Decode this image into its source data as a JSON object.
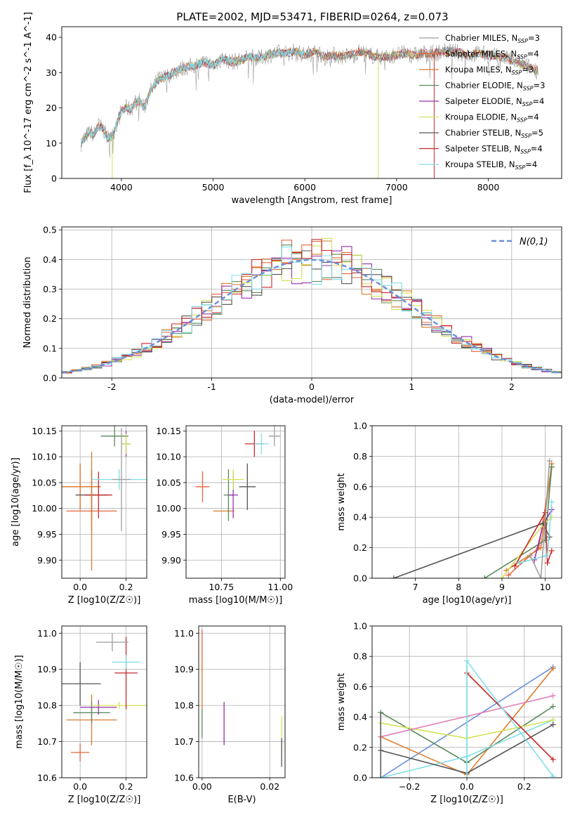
{
  "figure": {
    "title": "PLATE=2002, MJD=53471, FIBERID=0264, z=0.073"
  },
  "chart_data": [
    {
      "id": "spectrum",
      "type": "line",
      "title": "PLATE=2002, MJD=53471, FIBERID=0264, z=0.073",
      "xlabel": "wavelength [Angstrom, rest frame]",
      "ylabel": "Flux [f_λ 10^-17 erg cm^-2 s^-1 A^-1]",
      "xlim": [
        3350,
        8800
      ],
      "ylim": [
        0,
        43
      ],
      "xticks": [
        4000,
        5000,
        6000,
        7000,
        8000
      ],
      "yticks": [
        0,
        10,
        20,
        30,
        40
      ],
      "grid": false,
      "legend": "top-right",
      "wavelength": [
        3560,
        3600,
        3650,
        3700,
        3750,
        3800,
        3850,
        3900,
        3950,
        4000,
        4050,
        4100,
        4150,
        4200,
        4250,
        4300,
        4350,
        4400,
        4450,
        4500,
        4600,
        4700,
        4800,
        4900,
        5000,
        5100,
        5200,
        5300,
        5400,
        5500,
        5600,
        5700,
        5800,
        5900,
        6000,
        6100,
        6200,
        6300,
        6400,
        6500,
        6600,
        6700,
        6800,
        6900,
        7000,
        7100,
        7200,
        7300,
        7400,
        7500,
        7600,
        7700,
        7800,
        7900,
        8000,
        8100,
        8200,
        8300,
        8400,
        8550
      ],
      "flux": [
        10,
        11.5,
        13,
        12.5,
        15,
        14,
        11.5,
        12,
        15.5,
        19,
        20,
        19.5,
        21.5,
        22,
        20,
        24,
        26,
        28,
        28.5,
        29,
        30.5,
        31.5,
        32,
        33,
        32,
        34,
        33,
        33.5,
        34.5,
        34,
        35,
        35.5,
        35.5,
        36,
        35,
        36,
        34.5,
        35,
        34.5,
        35,
        36,
        35,
        34.5,
        34.5,
        35,
        35.5,
        35,
        35.5,
        35.5,
        36,
        36,
        35.5,
        35,
        35.5,
        35,
        34.5,
        34,
        33,
        32,
        30.5
      ],
      "drop_lines": [
        {
          "series": "Kroupa ELODIE, N_SSP=4",
          "x": 3900
        },
        {
          "series": "Kroupa ELODIE, N_SSP=4",
          "x": 6800
        },
        {
          "series": "Salpeter STELIB, N_SSP=4",
          "x": 7410
        }
      ],
      "series": [
        {
          "name": "Chabrier MILES, N_SSP=3"
        },
        {
          "name": "Salpeter MILES, N_SSP=4"
        },
        {
          "name": "Kroupa MILES, N_SSP=3"
        },
        {
          "name": "Chabrier ELODIE, N_SSP=3"
        },
        {
          "name": "Salpeter ELODIE, N_SSP=4"
        },
        {
          "name": "Kroupa ELODIE, N_SSP=4"
        },
        {
          "name": "Chabrier STELIB, N_SSP=5"
        },
        {
          "name": "Salpeter STELIB, N_SSP=4"
        },
        {
          "name": "Kroupa STELIB, N_SSP=4"
        }
      ]
    },
    {
      "id": "residuals",
      "type": "line",
      "xlabel": "(data-model)/error",
      "ylabel": "Normed distribution",
      "xlim": [
        -2.5,
        2.5
      ],
      "ylim": [
        0,
        0.51
      ],
      "xticks": [
        -2,
        -1,
        0,
        1,
        2
      ],
      "yticks": [
        0,
        0.1,
        0.2,
        0.3,
        0.4,
        0.5
      ],
      "grid": true,
      "legend": "top-right",
      "reference_curve": {
        "name": "N(0,1)",
        "mu": 0,
        "sigma": 1
      },
      "bin_width": 0.1
    },
    {
      "id": "age-vs-Z",
      "type": "scatter",
      "xlabel": "Z [log10(Z/Z☉)]",
      "ylabel": "age  [log10(age/yr)]",
      "xlim": [
        -0.08,
        0.29
      ],
      "ylim": [
        9.865,
        10.16
      ],
      "xticks": [
        0,
        0.2
      ],
      "yticks": [
        9.9,
        9.95,
        10.0,
        10.05,
        10.1,
        10.15
      ],
      "grid": true,
      "points": [
        {
          "x": 0.0,
          "y": 10.042,
          "xerr": 0.09,
          "yerr": 0.042
        },
        {
          "x": 0.0,
          "y": 10.042,
          "xerr": 0.09,
          "yerr": 0.045
        },
        {
          "x": 0.15,
          "y": 10.14,
          "xerr": 0.06,
          "yerr": 0.02
        },
        {
          "x": 0.2,
          "y": 10.125,
          "xerr": 0.02,
          "yerr": 0.025
        },
        {
          "x": 0.2,
          "y": 10.125,
          "xerr": 0.02,
          "yerr": 0.02
        },
        {
          "x": 0.05,
          "y": 10.026,
          "xerr": 0.07,
          "yerr": 0.05
        },
        {
          "x": 0.08,
          "y": 10.026,
          "xerr": 0.06,
          "yerr": 0.045
        },
        {
          "x": 0.17,
          "y": 10.056,
          "xerr": 0.12,
          "yerr": 0.02
        },
        {
          "x": 0.18,
          "y": 10.056,
          "xerr": 0.04,
          "yerr": 0.1
        },
        {
          "x": 0.05,
          "y": 9.995,
          "xerr": 0.11,
          "yerr": 0.04
        },
        {
          "x": 0.05,
          "y": 9.995,
          "xerr": 0.0,
          "yerr": 0.115
        }
      ]
    },
    {
      "id": "age-vs-mass",
      "type": "scatter",
      "xlabel": "mass [log10(M/M☉)]",
      "ylabel": "",
      "xlim": [
        10.6,
        11.02
      ],
      "ylim": [
        9.865,
        10.16
      ],
      "xticks": [
        10.75,
        11.0
      ],
      "yticks": [
        9.9,
        9.95,
        10.0,
        10.05,
        10.1,
        10.15
      ],
      "grid": true,
      "points": [
        {
          "x": 10.67,
          "y": 10.042,
          "xerr": 0.03,
          "yerr": 0.03
        },
        {
          "x": 10.76,
          "y": 9.995,
          "xerr": 0.045,
          "yerr": 0.0
        },
        {
          "x": 10.78,
          "y": 10.026,
          "xerr": 0.02,
          "yerr": 0.05
        },
        {
          "x": 10.8,
          "y": 10.026,
          "xerr": 0.02,
          "yerr": 0.045
        },
        {
          "x": 10.8,
          "y": 10.056,
          "xerr": 0.045,
          "yerr": 0.02
        },
        {
          "x": 10.86,
          "y": 10.042,
          "xerr": 0.035,
          "yerr": 0.045
        },
        {
          "x": 10.89,
          "y": 10.125,
          "xerr": 0.04,
          "yerr": 0.025
        },
        {
          "x": 10.92,
          "y": 10.125,
          "xerr": 0.03,
          "yerr": 0.02
        },
        {
          "x": 10.975,
          "y": 10.14,
          "xerr": 0.025,
          "yerr": 0.02
        }
      ]
    },
    {
      "id": "mass-weight-vs-age",
      "type": "line",
      "xlabel": "age  [log10(age/yr)]",
      "ylabel": "mass weight",
      "xlim": [
        6.0,
        10.38
      ],
      "ylim": [
        0,
        1.0
      ],
      "xticks": [
        7,
        8,
        9,
        10
      ],
      "yticks": [
        0,
        0.2,
        0.4,
        0.6,
        0.8,
        1.0
      ],
      "grid": true,
      "series_ages": [
        {
          "ages": [
            9.15,
            9.85,
            10.15
          ],
          "weights": [
            0.02,
            0.2,
            0.73
          ]
        },
        {
          "ages": [
            9.1,
            9.9,
            10.15
          ],
          "weights": [
            0.05,
            0.2,
            0.75
          ]
        },
        {
          "ages": [
            8.6,
            10.0,
            10.15
          ],
          "weights": [
            0.0,
            0.25,
            0.73
          ]
        },
        {
          "ages": [
            9.75,
            9.95,
            10.15
          ],
          "weights": [
            0.12,
            0.35,
            0.45
          ]
        },
        {
          "ages": [
            9.0,
            9.95,
            10.15
          ],
          "weights": [
            0.0,
            0.35,
            0.4
          ]
        },
        {
          "ages": [
            6.5,
            9.95,
            10.1
          ],
          "weights": [
            0.0,
            0.36,
            0.27
          ]
        },
        {
          "ages": [
            9.3,
            10.0,
            10.05,
            10.15
          ],
          "weights": [
            0.08,
            0.43,
            0.1,
            0.18
          ]
        },
        {
          "ages": [
            9.4,
            10.05,
            10.15
          ],
          "weights": [
            0.1,
            0.15,
            0.5
          ]
        },
        {
          "ages": [
            9.65,
            9.9,
            10.1
          ],
          "weights": [
            0.15,
            0.0,
            0.77
          ]
        }
      ]
    },
    {
      "id": "mass-vs-Z",
      "type": "scatter",
      "xlabel": "Z [log10(Z/Z☉)]",
      "ylabel": "mass [log10(M/M☉)]",
      "xlim": [
        -0.08,
        0.29
      ],
      "ylim": [
        10.6,
        11.02
      ],
      "xticks": [
        0,
        0.2
      ],
      "yticks": [
        10.6,
        10.7,
        10.8,
        10.9,
        11.0
      ],
      "grid": true,
      "points": [
        {
          "x": 0.0,
          "y": 10.67,
          "xerr": 0.04,
          "yerr": 0.025
        },
        {
          "x": 0.05,
          "y": 10.76,
          "xerr": 0.11,
          "yerr": 0.07
        },
        {
          "x": 0.05,
          "y": 10.78,
          "xerr": 0.08,
          "yerr": 0.03
        },
        {
          "x": 0.08,
          "y": 10.795,
          "xerr": 0.08,
          "yerr": 0.02
        },
        {
          "x": 0.17,
          "y": 10.8,
          "xerr": 0.12,
          "yerr": 0.01
        },
        {
          "x": 0.0,
          "y": 10.86,
          "xerr": 0.09,
          "yerr": 0.06
        },
        {
          "x": 0.2,
          "y": 10.89,
          "xerr": 0.05,
          "yerr": 0.1
        },
        {
          "x": 0.2,
          "y": 10.92,
          "xerr": 0.06,
          "yerr": 0.02
        },
        {
          "x": 0.14,
          "y": 10.975,
          "xerr": 0.07,
          "yerr": 0.025
        }
      ]
    },
    {
      "id": "mass-vs-ebv",
      "type": "scatter",
      "xlabel": "E(B-V)",
      "ylabel": "",
      "xlim": [
        -0.001,
        0.0245
      ],
      "ylim": [
        10.6,
        11.02
      ],
      "xticks": [
        0.0,
        0.02
      ],
      "yticks": [
        10.6,
        10.7,
        10.8,
        10.9,
        11.0
      ],
      "grid": true,
      "points": [
        {
          "x": 0.0,
          "y": 10.95,
          "xerr": 0.0,
          "yerr": 0.06
        },
        {
          "x": 0.0,
          "y": 10.86,
          "xerr": 0.0,
          "yerr": 0.07
        },
        {
          "x": 0.0,
          "y": 10.75,
          "xerr": 0.0,
          "yerr": 0.04
        },
        {
          "x": 0.0065,
          "y": 10.75,
          "xerr": 0.0,
          "yerr": 0.06
        },
        {
          "x": 0.0235,
          "y": 10.72,
          "xerr": 0.0,
          "yerr": 0.05
        },
        {
          "x": 0.0235,
          "y": 10.67,
          "xerr": 0.0,
          "yerr": 0.04
        }
      ]
    },
    {
      "id": "mass-weight-vs-Z",
      "type": "line",
      "xlabel": "Z [log10(Z/Z☉)]",
      "ylabel": "mass weight",
      "xlim": [
        -0.33,
        0.33
      ],
      "ylim": [
        0,
        1.0
      ],
      "xticks": [
        -0.2,
        0.0,
        0.2
      ],
      "yticks": [
        0,
        0.2,
        0.4,
        0.6,
        0.8,
        1.0
      ],
      "grid": true,
      "series_Z": [
        {
          "z": [
            -0.3,
            0.3
          ],
          "w": [
            0.0,
            0.73
          ]
        },
        {
          "z": [
            -0.3,
            0.0,
            0.3
          ],
          "w": [
            0.27,
            0.02,
            0.72
          ]
        },
        {
          "z": [
            -0.3,
            0.0,
            0.3
          ],
          "w": [
            0.43,
            0.1,
            0.47
          ]
        },
        {
          "z": [
            -0.3,
            0.0,
            0.3
          ],
          "w": [
            0.0,
            0.14,
            0.38
          ]
        },
        {
          "z": [
            -0.3,
            0.0,
            0.3
          ],
          "w": [
            0.36,
            0.26,
            0.38
          ]
        },
        {
          "z": [
            -0.3,
            0.0,
            0.3
          ],
          "w": [
            0.18,
            0.03,
            0.35
          ]
        },
        {
          "z": [
            0.0,
            0.3
          ],
          "w": [
            0.69,
            0.12
          ]
        },
        {
          "z": [
            -0.3,
            0.3
          ],
          "w": [
            0.27,
            0.54
          ]
        },
        {
          "z": [
            0.0,
            0.3
          ],
          "w": [
            0.77,
            0.01
          ]
        }
      ]
    }
  ],
  "colors": {
    "series": [
      "#9e9e9e",
      "#e8653f",
      "#d97a2b",
      "#5a8a5a",
      "#9b2fae",
      "#d4e157",
      "#555555",
      "#c62828",
      "#80deea"
    ],
    "mw_series_Z": [
      "#6a8fd8",
      "#e07b2a",
      "#5a8a5a",
      "#80deea",
      "#d4e157",
      "#555555",
      "#c62828",
      "#e07fb8",
      "#80deea"
    ],
    "normal_curve": "#6a8fd8",
    "grid": "#b0b0b0"
  },
  "legend2": {
    "label": "N(0,1)"
  }
}
